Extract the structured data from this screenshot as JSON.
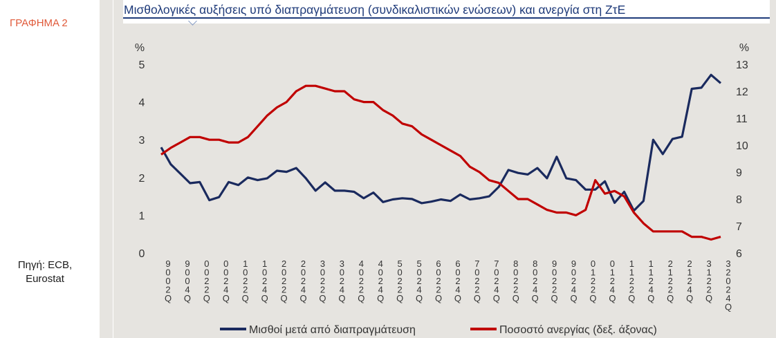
{
  "figure_label": "ΓΡΑΦΗΜΑ 2",
  "source_note": "Πηγή: ECB,\nEurostat",
  "chart_data": {
    "type": "line",
    "title": "Μισθολογικές αυξήσεις υπό διαπραγμάτευση (συνδικαλιστικών ενώσεων) και ανεργία στη ΖτΕ",
    "y_left": {
      "unit": "%",
      "range": [
        0,
        5
      ],
      "ticks": [
        "0",
        "1",
        "2",
        "3",
        "4",
        "5"
      ]
    },
    "y_right": {
      "unit": "%",
      "range": [
        6,
        13
      ],
      "ticks": [
        "6",
        "7",
        "8",
        "9",
        "10",
        "11",
        "12",
        "13"
      ]
    },
    "x_tick_labels": [
      [
        "9",
        "0",
        "0",
        "2",
        "Q"
      ],
      [
        "9",
        "0",
        "0",
        "4",
        "Q"
      ],
      [
        "0",
        "0",
        "2",
        "2",
        "Q"
      ],
      [
        "0",
        "0",
        "2",
        "4",
        "Q"
      ],
      [
        "1",
        "0",
        "2",
        "2",
        "Q"
      ],
      [
        "1",
        "0",
        "2",
        "4",
        "Q"
      ],
      [
        "2",
        "0",
        "2",
        "2",
        "Q"
      ],
      [
        "2",
        "0",
        "2",
        "4",
        "Q"
      ],
      [
        "3",
        "0",
        "2",
        "2",
        "Q"
      ],
      [
        "3",
        "0",
        "2",
        "4",
        "Q"
      ],
      [
        "4",
        "0",
        "2",
        "2",
        "Q"
      ],
      [
        "4",
        "0",
        "2",
        "4",
        "Q"
      ],
      [
        "5",
        "0",
        "2",
        "2",
        "Q"
      ],
      [
        "5",
        "0",
        "2",
        "4",
        "Q"
      ],
      [
        "6",
        "0",
        "2",
        "2",
        "Q"
      ],
      [
        "6",
        "0",
        "2",
        "4",
        "Q"
      ],
      [
        "7",
        "0",
        "2",
        "2",
        "Q"
      ],
      [
        "7",
        "0",
        "2",
        "4",
        "Q"
      ],
      [
        "8",
        "0",
        "2",
        "2",
        "Q"
      ],
      [
        "8",
        "0",
        "2",
        "4",
        "Q"
      ],
      [
        "9",
        "0",
        "2",
        "2",
        "Q"
      ],
      [
        "9",
        "0",
        "2",
        "4",
        "Q"
      ],
      [
        "0",
        "1",
        "2",
        "2",
        "Q"
      ],
      [
        "0",
        "1",
        "2",
        "4",
        "Q"
      ],
      [
        "1",
        "1",
        "2",
        "2",
        "Q"
      ],
      [
        "1",
        "1",
        "2",
        "4",
        "Q"
      ],
      [
        "2",
        "1",
        "2",
        "2",
        "Q"
      ],
      [
        "2",
        "1",
        "2",
        "4",
        "Q"
      ],
      [
        "3",
        "1",
        "2",
        "2",
        "Q"
      ],
      [
        "3",
        "2",
        "0",
        "2",
        "4",
        "Q"
      ]
    ],
    "series": [
      {
        "name": "Μισθοί μετά από διαπραγμάτευση",
        "axis": "left",
        "color": "#1a2a5e",
        "values": [
          2.8,
          2.35,
          2.1,
          1.85,
          1.88,
          1.4,
          1.48,
          1.88,
          1.8,
          2.0,
          1.93,
          1.98,
          2.18,
          2.15,
          2.25,
          1.98,
          1.65,
          1.87,
          1.65,
          1.65,
          1.62,
          1.45,
          1.6,
          1.35,
          1.42,
          1.45,
          1.43,
          1.32,
          1.36,
          1.42,
          1.38,
          1.55,
          1.42,
          1.45,
          1.5,
          1.75,
          2.2,
          2.12,
          2.08,
          2.25,
          1.98,
          2.55,
          1.98,
          1.93,
          1.68,
          1.68,
          1.9,
          1.33,
          1.62,
          1.12,
          1.38,
          3.0,
          2.62,
          3.02,
          3.08,
          4.35,
          4.38,
          4.72,
          4.5
        ]
      },
      {
        "name": "Ποσοστό ανεργίας (δεξ. άξονας)",
        "axis": "right",
        "color": "#c00000",
        "values": [
          9.65,
          9.9,
          10.1,
          10.3,
          10.3,
          10.2,
          10.2,
          10.1,
          10.1,
          10.3,
          10.7,
          11.1,
          11.4,
          11.6,
          12.0,
          12.2,
          12.2,
          12.1,
          12.0,
          12.0,
          11.7,
          11.6,
          11.6,
          11.3,
          11.1,
          10.8,
          10.7,
          10.4,
          10.2,
          10.0,
          9.8,
          9.6,
          9.2,
          9.0,
          8.7,
          8.6,
          8.3,
          8.0,
          8.0,
          7.8,
          7.6,
          7.5,
          7.5,
          7.4,
          7.6,
          8.7,
          8.2,
          8.3,
          8.1,
          7.5,
          7.1,
          6.8,
          6.8,
          6.8,
          6.8,
          6.6,
          6.6,
          6.5,
          6.6
        ]
      }
    ],
    "legend_position": "bottom",
    "grid": false
  }
}
